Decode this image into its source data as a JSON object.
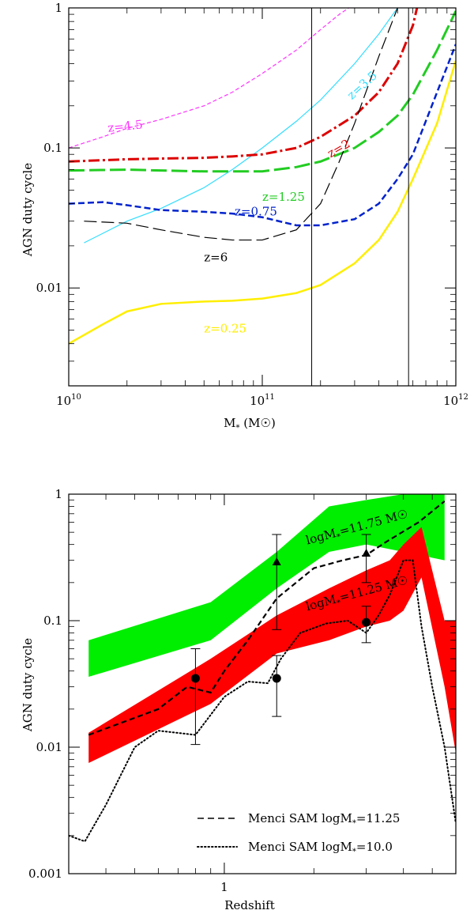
{
  "chart_data": [
    {
      "type": "line",
      "title": "",
      "xlabel_main": "M",
      "xlabel_sub": "*",
      "xlabel_unit_open": " (M",
      "xlabel_unit_close": ")",
      "ylabel": "AGN duty cycle",
      "xscale": "log",
      "yscale": "log",
      "xlim": [
        10000000000.0,
        1000000000000.0
      ],
      "ylim": [
        0.002,
        1
      ],
      "x_ticks": [
        {
          "value": 10000000000.0,
          "base": "10",
          "exp": "10"
        },
        {
          "value": 100000000000.0,
          "base": "10",
          "exp": "11"
        },
        {
          "value": 1000000000000.0,
          "base": "10",
          "exp": "12"
        }
      ],
      "y_ticks": [
        {
          "value": 1,
          "label": "1"
        },
        {
          "value": 0.1,
          "label": "0.1"
        },
        {
          "value": 0.01,
          "label": "0.01"
        }
      ],
      "vlines": [
        180000000000.0,
        570000000000.0
      ],
      "series": [
        {
          "name": "z=4.5",
          "color": "#ff33ff",
          "style": "dash-fine",
          "width": 1.2,
          "x": [
            10000000000.0,
            15000000000.0,
            20000000000.0,
            30000000000.0,
            50000000000.0,
            70000000000.0,
            100000000000.0,
            150000000000.0,
            200000000000.0,
            250000000000.0,
            280000000000.0
          ],
          "y": [
            0.1,
            0.12,
            0.138,
            0.16,
            0.2,
            0.25,
            0.34,
            0.5,
            0.7,
            0.9,
            1.0
          ]
        },
        {
          "name": "z=3.5",
          "color": "#33ddff",
          "style": "solid",
          "width": 1.2,
          "x": [
            12000000000.0,
            20000000000.0,
            30000000000.0,
            50000000000.0,
            70000000000.0,
            100000000000.0,
            150000000000.0,
            200000000000.0,
            300000000000.0,
            400000000000.0,
            500000000000.0
          ],
          "y": [
            0.021,
            0.03,
            0.037,
            0.052,
            0.07,
            0.1,
            0.155,
            0.22,
            0.4,
            0.65,
            1.0
          ]
        },
        {
          "name": "z=2",
          "color": "#dd0000",
          "style": "dashdot",
          "width": 3,
          "x": [
            10000000000.0,
            20000000000.0,
            30000000000.0,
            50000000000.0,
            70000000000.0,
            100000000000.0,
            150000000000.0,
            200000000000.0,
            300000000000.0,
            400000000000.0,
            500000000000.0,
            600000000000.0,
            630000000000.0
          ],
          "y": [
            0.08,
            0.083,
            0.084,
            0.085,
            0.087,
            0.09,
            0.1,
            0.12,
            0.17,
            0.25,
            0.4,
            0.75,
            1.0
          ]
        },
        {
          "name": "z=1.25",
          "color": "#22cc22",
          "style": "dash-long",
          "width": 3,
          "x": [
            10000000000.0,
            20000000000.0,
            30000000000.0,
            50000000000.0,
            70000000000.0,
            100000000000.0,
            150000000000.0,
            200000000000.0,
            300000000000.0,
            400000000000.0,
            500000000000.0,
            600000000000.0,
            800000000000.0,
            1000000000000.0
          ],
          "y": [
            0.069,
            0.07,
            0.069,
            0.068,
            0.068,
            0.068,
            0.073,
            0.08,
            0.1,
            0.13,
            0.17,
            0.24,
            0.5,
            0.95
          ]
        },
        {
          "name": "z=0.75",
          "color": "#0022cc",
          "style": "dash-med",
          "width": 2.5,
          "x": [
            10000000000.0,
            15000000000.0,
            20000000000.0,
            30000000000.0,
            50000000000.0,
            70000000000.0,
            100000000000.0,
            150000000000.0,
            200000000000.0,
            300000000000.0,
            400000000000.0,
            500000000000.0,
            600000000000.0,
            800000000000.0,
            1000000000000.0
          ],
          "y": [
            0.04,
            0.041,
            0.039,
            0.036,
            0.035,
            0.034,
            0.032,
            0.028,
            0.028,
            0.031,
            0.04,
            0.06,
            0.09,
            0.25,
            0.55
          ]
        },
        {
          "name": "z=6",
          "color": "#000000",
          "style": "dash-long-thin",
          "width": 1.2,
          "x": [
            12000000000.0,
            20000000000.0,
            30000000000.0,
            50000000000.0,
            70000000000.0,
            100000000000.0,
            150000000000.0,
            200000000000.0,
            250000000000.0,
            300000000000.0,
            400000000000.0,
            500000000000.0
          ],
          "y": [
            0.03,
            0.029,
            0.026,
            0.023,
            0.022,
            0.022,
            0.026,
            0.04,
            0.08,
            0.15,
            0.45,
            1.0
          ]
        },
        {
          "name": "z=0.25",
          "color": "#ffee00",
          "style": "solid",
          "width": 2.5,
          "x": [
            10000000000.0,
            15000000000.0,
            20000000000.0,
            30000000000.0,
            50000000000.0,
            70000000000.0,
            100000000000.0,
            150000000000.0,
            200000000000.0,
            300000000000.0,
            400000000000.0,
            500000000000.0,
            600000000000.0,
            800000000000.0,
            1000000000000.0
          ],
          "y": [
            0.004,
            0.0055,
            0.0068,
            0.0077,
            0.008,
            0.0081,
            0.0084,
            0.0092,
            0.0105,
            0.015,
            0.022,
            0.035,
            0.06,
            0.15,
            0.42
          ]
        }
      ],
      "labels": [
        {
          "text": "z=4.5",
          "color": "#ff33ff",
          "x": 16000000000.0,
          "y": 0.13,
          "rotate": -6
        },
        {
          "text": "z=3.5",
          "color": "#33ddff",
          "x": 290000000000.0,
          "y": 0.22,
          "rotate": -42
        },
        {
          "text": "z=2",
          "color": "#dd0000",
          "x": 225000000000.0,
          "y": 0.085,
          "rotate": -30
        },
        {
          "text": "z=1.25",
          "color": "#22cc22",
          "x": 100000000000.0,
          "y": 0.042,
          "rotate": 0
        },
        {
          "text": "z=0.75",
          "color": "#0022cc",
          "x": 72000000000.0,
          "y": 0.033,
          "rotate": 0
        },
        {
          "text": "z=6",
          "color": "#000000",
          "x": 50000000000.0,
          "y": 0.0155,
          "rotate": 0
        },
        {
          "text": "z=0.25",
          "color": "#ffee00",
          "x": 50000000000.0,
          "y": 0.0048,
          "rotate": 0
        }
      ]
    },
    {
      "type": "area",
      "title": "",
      "xlabel": "Redshift",
      "ylabel": "AGN duty cycle",
      "xscale": "log",
      "yscale": "log",
      "xlim": [
        0.3,
        6
      ],
      "ylim": [
        0.001,
        1
      ],
      "x_ticks": [
        {
          "value": 1,
          "label": "1"
        }
      ],
      "y_ticks": [
        {
          "value": 1,
          "label": "1"
        },
        {
          "value": 0.1,
          "label": "0.1"
        },
        {
          "value": 0.01,
          "label": "0.01"
        },
        {
          "value": 0.001,
          "label": "0.001"
        }
      ],
      "bands": [
        {
          "name": "logM*=11.75 band",
          "color": "#00ee00",
          "x": [
            0.35,
            0.9,
            1.5,
            2.25,
            3.0,
            4.0,
            5.5
          ],
          "upper": [
            0.07,
            0.14,
            0.35,
            0.8,
            0.9,
            1.0,
            1.0
          ],
          "lower": [
            0.036,
            0.07,
            0.18,
            0.35,
            0.4,
            0.35,
            0.3
          ]
        },
        {
          "name": "logM*=11.25 band",
          "color": "#ff0000",
          "x": [
            0.35,
            0.9,
            1.5,
            2.25,
            3.0,
            3.6,
            4.0,
            4.6,
            5.5,
            6.0
          ],
          "upper": [
            0.013,
            0.05,
            0.11,
            0.18,
            0.25,
            0.3,
            0.4,
            0.55,
            0.1,
            0.1
          ],
          "lower": [
            0.0075,
            0.022,
            0.055,
            0.07,
            0.09,
            0.1,
            0.12,
            0.22,
            0.03,
            0.009
          ]
        }
      ],
      "series": [
        {
          "name": "Menci SAM logM*=11.25",
          "style": "dashed",
          "x": [
            0.35,
            0.6,
            0.75,
            0.9,
            1.0,
            1.2,
            1.5,
            2.0,
            2.5,
            3.0,
            3.5,
            4.5,
            5.5
          ],
          "y": [
            0.0125,
            0.02,
            0.03,
            0.027,
            0.04,
            0.07,
            0.15,
            0.26,
            0.3,
            0.33,
            0.42,
            0.6,
            0.88
          ]
        },
        {
          "name": "Menci SAM logM*=10.0",
          "style": "dotted",
          "x": [
            0.3,
            0.34,
            0.4,
            0.5,
            0.6,
            0.8,
            1.0,
            1.2,
            1.4,
            1.55,
            1.8,
            2.2,
            2.6,
            3.0,
            3.3,
            3.6,
            4.0,
            4.3,
            4.6,
            5.0,
            5.5,
            6.0
          ],
          "y": [
            0.002,
            0.0018,
            0.0035,
            0.01,
            0.0135,
            0.0125,
            0.025,
            0.033,
            0.032,
            0.05,
            0.08,
            0.095,
            0.1,
            0.08,
            0.11,
            0.16,
            0.3,
            0.3,
            0.09,
            0.03,
            0.01,
            0.0025
          ]
        }
      ],
      "points": [
        {
          "marker": "circle",
          "x": 0.8,
          "y": 0.035,
          "ylo": 0.0105,
          "yhi": 0.06
        },
        {
          "marker": "circle",
          "x": 1.5,
          "y": 0.035,
          "ylo": 0.0175,
          "yhi": 0.053
        },
        {
          "marker": "circle",
          "x": 3.0,
          "y": 0.097,
          "ylo": 0.067,
          "yhi": 0.13
        },
        {
          "marker": "triangle",
          "x": 1.5,
          "y": 0.29,
          "ylo": 0.085,
          "yhi": 0.48
        },
        {
          "marker": "triangle",
          "x": 3.0,
          "y": 0.34,
          "ylo": 0.2,
          "yhi": 0.48
        }
      ],
      "band_labels": [
        {
          "main": "logM",
          "sub": "*",
          "rest": "=11.75 M",
          "x": 1.9,
          "y": 0.4,
          "rotate": -15
        },
        {
          "main": "logM",
          "sub": "*",
          "rest": "=11.25 M",
          "x": 1.9,
          "y": 0.12,
          "rotate": -15
        }
      ],
      "legend": [
        {
          "style": "dashed",
          "text_main": "Menci SAM logM",
          "text_sub": "*",
          "text_rest": "=11.25"
        },
        {
          "style": "dotted",
          "text_main": "Menci SAM logM",
          "text_sub": "*",
          "text_rest": "=10.0"
        }
      ]
    }
  ]
}
